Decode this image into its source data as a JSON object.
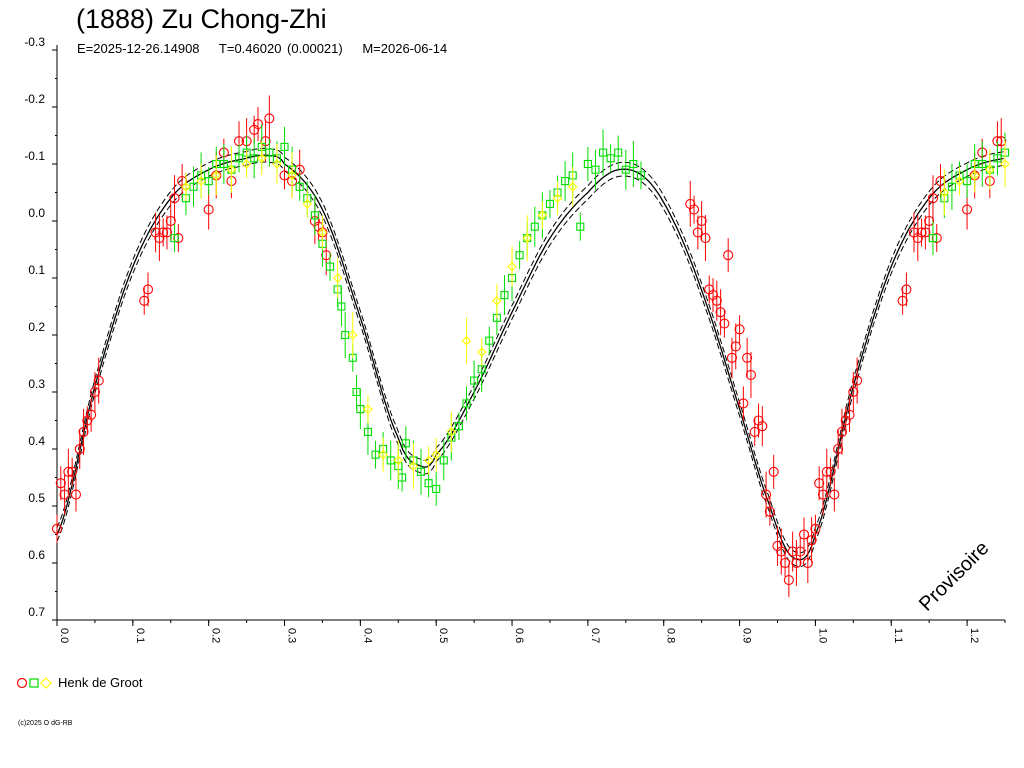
{
  "title": "(1888) Zu Chong-Zhi",
  "info": {
    "epoch": "E=2025-12-26.14908",
    "period": "T=0.46020 (0.00021)",
    "date": "M=2026-06-14"
  },
  "watermark": "Provisoire",
  "legend": {
    "observer": "Henk de Groot"
  },
  "copyright": "(c)2025 O dG-RB",
  "colors": {
    "red": "#ff0000",
    "green": "#00dd00",
    "yellow": "#ffff00",
    "curve": "#000000"
  },
  "chart_data": {
    "type": "scatter",
    "title": "(1888) Zu Chong-Zhi",
    "xlabel": "",
    "ylabel": "",
    "xlim": [
      0.0,
      1.25
    ],
    "ylim": [
      -0.3,
      0.7
    ],
    "y_inverted": true,
    "grid": false,
    "legend_position": "bottom-left",
    "x_ticks": [
      "0.0",
      "0.1",
      "0.2",
      "0.3",
      "0.4",
      "0.5",
      "0.6",
      "0.7",
      "0.8",
      "0.9",
      "1.0",
      "1.1",
      "1.2"
    ],
    "y_ticks": [
      "-0.3",
      "-0.2",
      "-0.1",
      "0.0",
      "0.1",
      "0.2",
      "0.3",
      "0.4",
      "0.5",
      "0.6",
      "0.7"
    ],
    "fit_curve": {
      "note": "fitted lightcurve with two dashed uncertainty bounds",
      "points": [
        [
          0.0,
          0.55
        ],
        [
          0.05,
          0.29
        ],
        [
          0.1,
          0.08
        ],
        [
          0.15,
          -0.04
        ],
        [
          0.2,
          -0.09
        ],
        [
          0.25,
          -0.11
        ],
        [
          0.28,
          -0.115
        ],
        [
          0.3,
          -0.1
        ],
        [
          0.35,
          -0.02
        ],
        [
          0.4,
          0.17
        ],
        [
          0.45,
          0.38
        ],
        [
          0.48,
          0.43
        ],
        [
          0.5,
          0.41
        ],
        [
          0.55,
          0.3
        ],
        [
          0.6,
          0.16
        ],
        [
          0.65,
          0.03
        ],
        [
          0.7,
          -0.05
        ],
        [
          0.74,
          -0.09
        ],
        [
          0.78,
          -0.07
        ],
        [
          0.82,
          0.02
        ],
        [
          0.86,
          0.16
        ],
        [
          0.9,
          0.33
        ],
        [
          0.94,
          0.5
        ],
        [
          0.97,
          0.59
        ],
        [
          1.0,
          0.55
        ],
        [
          1.05,
          0.29
        ],
        [
          1.1,
          0.08
        ],
        [
          1.15,
          -0.04
        ],
        [
          1.2,
          -0.09
        ],
        [
          1.25,
          -0.11
        ]
      ]
    },
    "series": [
      {
        "marker": "circle",
        "color": "#ff0000",
        "points": [
          [
            0.0,
            0.54
          ],
          [
            0.005,
            0.46
          ],
          [
            0.01,
            0.48
          ],
          [
            0.015,
            0.44
          ],
          [
            0.02,
            0.44
          ],
          [
            0.025,
            0.48
          ],
          [
            0.03,
            0.4
          ],
          [
            0.035,
            0.37
          ],
          [
            0.04,
            0.35
          ],
          [
            0.045,
            0.34
          ],
          [
            0.05,
            0.3
          ],
          [
            0.055,
            0.28
          ],
          [
            0.115,
            0.14
          ],
          [
            0.12,
            0.12
          ],
          [
            0.13,
            0.02
          ],
          [
            0.135,
            0.03
          ],
          [
            0.14,
            0.02
          ],
          [
            0.145,
            0.02
          ],
          [
            0.15,
            0.0
          ],
          [
            0.155,
            -0.04
          ],
          [
            0.16,
            0.03
          ],
          [
            0.165,
            -0.07
          ],
          [
            0.2,
            -0.02
          ],
          [
            0.21,
            -0.08
          ],
          [
            0.22,
            -0.12
          ],
          [
            0.23,
            -0.07
          ],
          [
            0.24,
            -0.14
          ],
          [
            0.25,
            -0.14
          ],
          [
            0.26,
            -0.16
          ],
          [
            0.265,
            -0.17
          ],
          [
            0.275,
            -0.14
          ],
          [
            0.28,
            -0.18
          ],
          [
            0.3,
            -0.08
          ],
          [
            0.31,
            -0.07
          ],
          [
            0.32,
            -0.09
          ],
          [
            0.34,
            0.0
          ],
          [
            0.345,
            0.01
          ],
          [
            0.35,
            0.02
          ],
          [
            0.355,
            0.06
          ],
          [
            0.835,
            -0.03
          ],
          [
            0.84,
            -0.02
          ],
          [
            0.845,
            0.02
          ],
          [
            0.85,
            0.0
          ],
          [
            0.855,
            0.03
          ],
          [
            0.86,
            0.12
          ],
          [
            0.865,
            0.13
          ],
          [
            0.87,
            0.14
          ],
          [
            0.875,
            0.16
          ],
          [
            0.88,
            0.18
          ],
          [
            0.885,
            0.06
          ],
          [
            0.89,
            0.24
          ],
          [
            0.895,
            0.22
          ],
          [
            0.9,
            0.19
          ],
          [
            0.905,
            0.32
          ],
          [
            0.91,
            0.24
          ],
          [
            0.915,
            0.27
          ],
          [
            0.92,
            0.37
          ],
          [
            0.925,
            0.35
          ],
          [
            0.93,
            0.36
          ],
          [
            0.935,
            0.48
          ],
          [
            0.94,
            0.51
          ],
          [
            0.945,
            0.44
          ],
          [
            0.95,
            0.57
          ],
          [
            0.955,
            0.58
          ],
          [
            0.96,
            0.6
          ],
          [
            0.965,
            0.63
          ],
          [
            0.97,
            0.58
          ],
          [
            0.975,
            0.6
          ],
          [
            0.98,
            0.58
          ],
          [
            0.985,
            0.55
          ],
          [
            0.99,
            0.6
          ],
          [
            0.995,
            0.56
          ],
          [
            1.0,
            0.54
          ],
          [
            1.005,
            0.46
          ],
          [
            1.01,
            0.48
          ],
          [
            1.015,
            0.44
          ],
          [
            1.02,
            0.44
          ],
          [
            1.025,
            0.48
          ],
          [
            1.03,
            0.4
          ],
          [
            1.035,
            0.37
          ],
          [
            1.04,
            0.35
          ],
          [
            1.045,
            0.34
          ],
          [
            1.05,
            0.3
          ],
          [
            1.055,
            0.28
          ],
          [
            1.115,
            0.14
          ],
          [
            1.12,
            0.12
          ],
          [
            1.13,
            0.02
          ],
          [
            1.135,
            0.03
          ],
          [
            1.14,
            0.02
          ],
          [
            1.145,
            0.02
          ],
          [
            1.15,
            0.0
          ],
          [
            1.155,
            -0.04
          ],
          [
            1.16,
            0.03
          ],
          [
            1.165,
            -0.07
          ],
          [
            1.2,
            -0.02
          ],
          [
            1.21,
            -0.08
          ],
          [
            1.22,
            -0.12
          ],
          [
            1.23,
            -0.07
          ],
          [
            1.24,
            -0.14
          ],
          [
            1.245,
            -0.14
          ]
        ]
      },
      {
        "marker": "square",
        "color": "#00dd00",
        "points": [
          [
            0.155,
            0.03
          ],
          [
            0.17,
            -0.04
          ],
          [
            0.18,
            -0.06
          ],
          [
            0.19,
            -0.08
          ],
          [
            0.2,
            -0.07
          ],
          [
            0.21,
            -0.1
          ],
          [
            0.22,
            -0.1
          ],
          [
            0.23,
            -0.09
          ],
          [
            0.24,
            -0.11
          ],
          [
            0.25,
            -0.12
          ],
          [
            0.26,
            -0.11
          ],
          [
            0.27,
            -0.13
          ],
          [
            0.28,
            -0.12
          ],
          [
            0.29,
            -0.11
          ],
          [
            0.3,
            -0.13
          ],
          [
            0.31,
            -0.09
          ],
          [
            0.32,
            -0.06
          ],
          [
            0.33,
            -0.04
          ],
          [
            0.34,
            -0.01
          ],
          [
            0.35,
            0.04
          ],
          [
            0.36,
            0.08
          ],
          [
            0.37,
            0.12
          ],
          [
            0.375,
            0.15
          ],
          [
            0.38,
            0.2
          ],
          [
            0.39,
            0.24
          ],
          [
            0.395,
            0.3
          ],
          [
            0.4,
            0.33
          ],
          [
            0.41,
            0.37
          ],
          [
            0.42,
            0.41
          ],
          [
            0.43,
            0.4
          ],
          [
            0.44,
            0.42
          ],
          [
            0.45,
            0.43
          ],
          [
            0.455,
            0.45
          ],
          [
            0.46,
            0.39
          ],
          [
            0.47,
            0.42
          ],
          [
            0.48,
            0.44
          ],
          [
            0.49,
            0.46
          ],
          [
            0.5,
            0.47
          ],
          [
            0.51,
            0.42
          ],
          [
            0.52,
            0.38
          ],
          [
            0.53,
            0.36
          ],
          [
            0.54,
            0.32
          ],
          [
            0.55,
            0.28
          ],
          [
            0.56,
            0.26
          ],
          [
            0.57,
            0.21
          ],
          [
            0.58,
            0.17
          ],
          [
            0.59,
            0.13
          ],
          [
            0.6,
            0.1
          ],
          [
            0.61,
            0.06
          ],
          [
            0.62,
            0.03
          ],
          [
            0.63,
            0.01
          ],
          [
            0.64,
            -0.01
          ],
          [
            0.65,
            -0.03
          ],
          [
            0.66,
            -0.05
          ],
          [
            0.67,
            -0.07
          ],
          [
            0.68,
            -0.08
          ],
          [
            0.69,
            0.01
          ],
          [
            0.7,
            -0.1
          ],
          [
            0.71,
            -0.09
          ],
          [
            0.72,
            -0.12
          ],
          [
            0.73,
            -0.11
          ],
          [
            0.74,
            -0.12
          ],
          [
            0.75,
            -0.09
          ],
          [
            0.76,
            -0.1
          ],
          [
            0.77,
            -0.08
          ],
          [
            1.155,
            0.03
          ],
          [
            1.17,
            -0.04
          ],
          [
            1.18,
            -0.06
          ],
          [
            1.19,
            -0.08
          ],
          [
            1.2,
            -0.07
          ],
          [
            1.21,
            -0.1
          ],
          [
            1.22,
            -0.1
          ],
          [
            1.23,
            -0.09
          ],
          [
            1.24,
            -0.11
          ],
          [
            1.25,
            -0.12
          ]
        ]
      },
      {
        "marker": "diamond",
        "color": "#ffff00",
        "points": [
          [
            0.17,
            -0.06
          ],
          [
            0.19,
            -0.07
          ],
          [
            0.21,
            -0.08
          ],
          [
            0.23,
            -0.09
          ],
          [
            0.25,
            -0.1
          ],
          [
            0.27,
            -0.11
          ],
          [
            0.29,
            -0.1
          ],
          [
            0.31,
            -0.08
          ],
          [
            0.33,
            -0.03
          ],
          [
            0.35,
            0.02
          ],
          [
            0.37,
            0.1
          ],
          [
            0.39,
            0.2
          ],
          [
            0.41,
            0.33
          ],
          [
            0.43,
            0.41
          ],
          [
            0.45,
            0.42
          ],
          [
            0.47,
            0.43
          ],
          [
            0.49,
            0.42
          ],
          [
            0.5,
            0.41
          ],
          [
            0.52,
            0.37
          ],
          [
            0.54,
            0.21
          ],
          [
            0.56,
            0.23
          ],
          [
            0.58,
            0.14
          ],
          [
            0.6,
            0.08
          ],
          [
            0.62,
            0.03
          ],
          [
            0.64,
            -0.01
          ],
          [
            0.66,
            -0.04
          ],
          [
            0.68,
            -0.06
          ],
          [
            1.17,
            -0.05
          ],
          [
            1.19,
            -0.07
          ],
          [
            1.21,
            -0.08
          ],
          [
            1.23,
            -0.09
          ],
          [
            1.25,
            -0.1
          ]
        ]
      }
    ]
  }
}
